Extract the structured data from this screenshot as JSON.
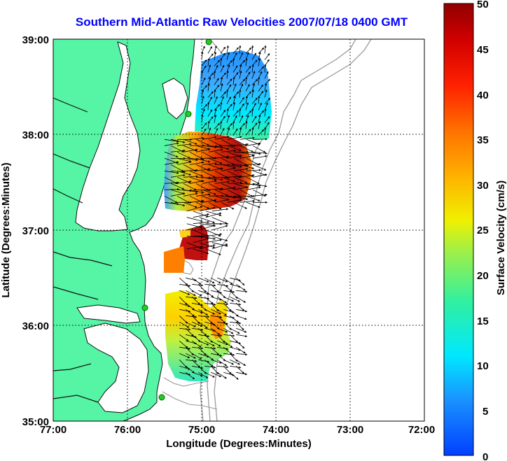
{
  "title": "Southern Mid-Atlantic Raw Velocities 2007/07/18 0400 GMT",
  "x_axis": {
    "label": "Longitude (Degrees:Minutes)",
    "ticks": [
      "77:00",
      "76:00",
      "75:00",
      "74:00",
      "73:00",
      "72:00"
    ]
  },
  "y_axis": {
    "label": "Latitude (Degrees:Minutes)",
    "ticks": [
      "39:00",
      "38:00",
      "37:00",
      "36:00",
      "35:00"
    ]
  },
  "colorbar": {
    "label": "Surface Velocity (cm/s)",
    "ticks": [
      "50",
      "45",
      "40",
      "35",
      "30",
      "25",
      "20",
      "15",
      "10",
      "5",
      "0"
    ],
    "range": [
      0,
      50
    ],
    "colormap": "jet"
  },
  "colors": {
    "land": "#55f5a5",
    "coastline": "#111111",
    "bathymetry": "#9a9a9a",
    "title": "#0000ff",
    "station": "#22cc22"
  },
  "map_extent": {
    "lon": [
      -77,
      -72
    ],
    "lat": [
      35,
      39
    ]
  },
  "velocity_regions": [
    {
      "name": "northern-field",
      "lon": [
        -75.0,
        -74.1
      ],
      "lat": [
        37.95,
        38.85
      ],
      "speed_cm_s": 10
    },
    {
      "name": "middle-field",
      "lon": [
        -75.5,
        -74.3
      ],
      "lat": [
        37.25,
        37.95
      ],
      "speed_cm_s": 35
    },
    {
      "name": "southern-core",
      "lon": [
        -75.2,
        -74.8
      ],
      "lat": [
        36.8,
        37.2
      ],
      "speed_cm_s": 43
    },
    {
      "name": "south-field",
      "lon": [
        -75.3,
        -74.5
      ],
      "lat": [
        35.5,
        36.5
      ],
      "speed_cm_s": 22
    }
  ]
}
